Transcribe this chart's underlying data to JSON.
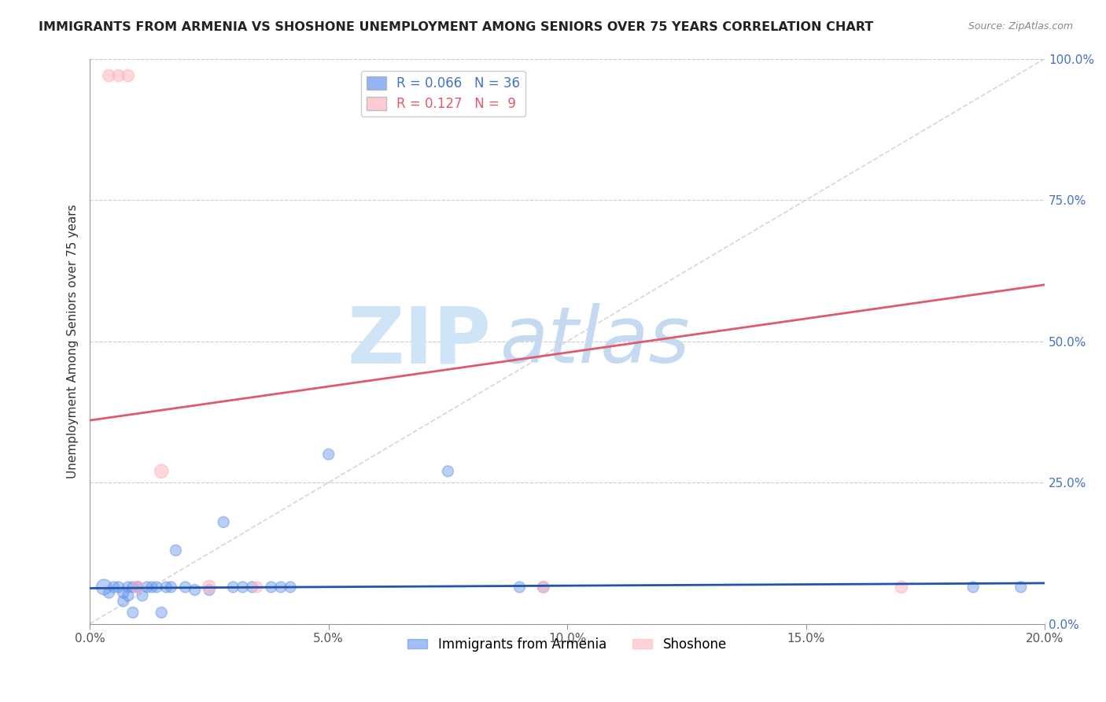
{
  "title": "IMMIGRANTS FROM ARMENIA VS SHOSHONE UNEMPLOYMENT AMONG SENIORS OVER 75 YEARS CORRELATION CHART",
  "source": "Source: ZipAtlas.com",
  "xlabel": "",
  "ylabel": "Unemployment Among Seniors over 75 years",
  "xlim": [
    0.0,
    0.2
  ],
  "ylim": [
    0.0,
    1.0
  ],
  "xticks": [
    0.0,
    0.05,
    0.1,
    0.15,
    0.2
  ],
  "xtick_labels": [
    "0.0%",
    "5.0%",
    "10.0%",
    "15.0%",
    "20.0%"
  ],
  "yticks": [
    0.0,
    0.25,
    0.5,
    0.75,
    1.0
  ],
  "ytick_labels": [
    "0.0%",
    "25.0%",
    "50.0%",
    "75.0%",
    "100.0%"
  ],
  "blue_color": "#6495ED",
  "pink_color": "#FFB6C1",
  "blue_line_color": "#2255aa",
  "pink_line_color": "#e05a6b",
  "diag_line_color": "#cccccc",
  "legend_R_blue": "R = 0.066",
  "legend_N_blue": "N = 36",
  "legend_R_pink": "R = 0.127",
  "legend_N_pink": "N =  9",
  "blue_scatter_x": [
    0.003,
    0.004,
    0.005,
    0.006,
    0.007,
    0.007,
    0.008,
    0.008,
    0.009,
    0.009,
    0.01,
    0.01,
    0.011,
    0.012,
    0.013,
    0.014,
    0.015,
    0.016,
    0.017,
    0.018,
    0.02,
    0.022,
    0.025,
    0.028,
    0.03,
    0.032,
    0.034,
    0.038,
    0.04,
    0.042,
    0.05,
    0.075,
    0.09,
    0.095,
    0.185,
    0.195
  ],
  "blue_scatter_y": [
    0.065,
    0.055,
    0.065,
    0.065,
    0.055,
    0.04,
    0.065,
    0.05,
    0.065,
    0.02,
    0.065,
    0.065,
    0.05,
    0.065,
    0.065,
    0.065,
    0.02,
    0.065,
    0.065,
    0.13,
    0.065,
    0.06,
    0.06,
    0.18,
    0.065,
    0.065,
    0.065,
    0.065,
    0.065,
    0.065,
    0.3,
    0.27,
    0.065,
    0.065,
    0.065,
    0.065
  ],
  "blue_scatter_s": [
    200,
    100,
    100,
    100,
    100,
    100,
    100,
    100,
    100,
    100,
    100,
    100,
    100,
    100,
    100,
    100,
    100,
    100,
    100,
    100,
    100,
    100,
    100,
    100,
    100,
    100,
    100,
    100,
    100,
    100,
    100,
    100,
    100,
    100,
    100,
    100
  ],
  "pink_scatter_x": [
    0.004,
    0.006,
    0.008,
    0.01,
    0.015,
    0.025,
    0.035,
    0.095,
    0.17
  ],
  "pink_scatter_y": [
    0.97,
    0.97,
    0.97,
    0.065,
    0.27,
    0.065,
    0.065,
    0.065,
    0.065
  ],
  "pink_scatter_s": [
    120,
    120,
    120,
    120,
    150,
    150,
    100,
    120,
    120
  ],
  "blue_trend_x": [
    0.0,
    0.2
  ],
  "blue_trend_y": [
    0.063,
    0.072
  ],
  "pink_trend_x": [
    0.0,
    0.2
  ],
  "pink_trend_y": [
    0.36,
    0.6
  ]
}
